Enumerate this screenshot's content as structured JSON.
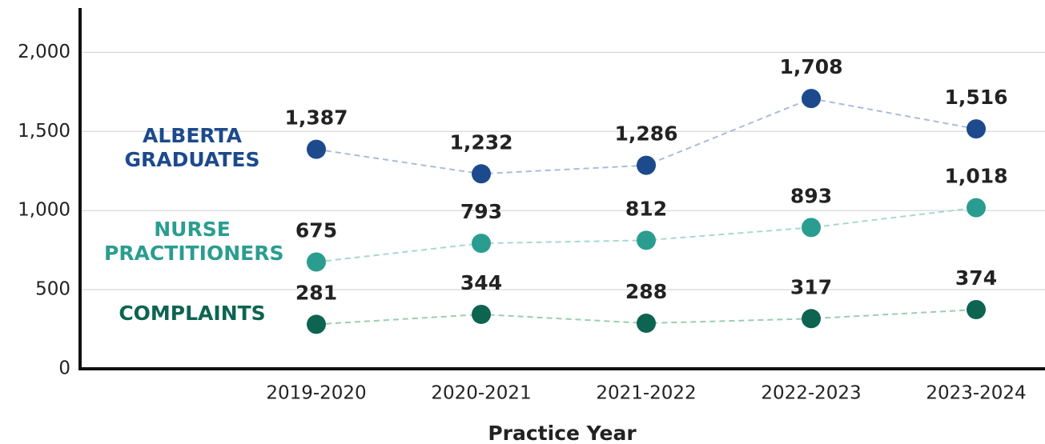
{
  "chart_data": {
    "type": "line",
    "x_label": "Practice Year",
    "categories": [
      "2019-2020",
      "2020-2021",
      "2021-2022",
      "2022-2023",
      "2023-2024"
    ],
    "series": [
      {
        "name": "ALBERTA GRADUATES",
        "color": "#1c4a8c",
        "line_color": "#a9bcdc",
        "values": [
          1387,
          1232,
          1286,
          1708,
          1516
        ],
        "value_labels": [
          "1,387",
          "1,232",
          "1,286",
          "1,708",
          "1,516"
        ]
      },
      {
        "name": "NURSE PRACTITIONERS",
        "color": "#2a9d90",
        "line_color": "#a6d9cf",
        "values": [
          675,
          793,
          812,
          893,
          1018
        ],
        "value_labels": [
          "675",
          "793",
          "812",
          "893",
          "1,018"
        ]
      },
      {
        "name": "COMPLAINTS",
        "color": "#0d6450",
        "line_color": "#9ccdb0",
        "values": [
          281,
          344,
          288,
          317,
          374
        ],
        "value_labels": [
          "281",
          "344",
          "288",
          "317",
          "374"
        ]
      }
    ],
    "ylim": [
      0,
      2280
    ],
    "yticks": [
      0,
      500,
      {
        "value": 1000,
        "label": "1,000"
      },
      {
        "value": 1500,
        "label": "1,500"
      },
      {
        "value": 2000,
        "label": "2,000"
      }
    ],
    "grid": true
  }
}
